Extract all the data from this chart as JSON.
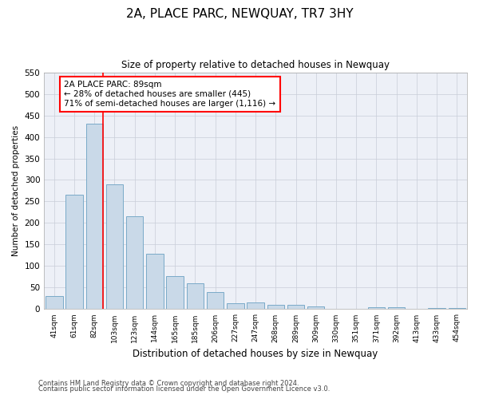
{
  "title": "2A, PLACE PARC, NEWQUAY, TR7 3HY",
  "subtitle": "Size of property relative to detached houses in Newquay",
  "xlabel": "Distribution of detached houses by size in Newquay",
  "ylabel": "Number of detached properties",
  "categories": [
    "41sqm",
    "61sqm",
    "82sqm",
    "103sqm",
    "123sqm",
    "144sqm",
    "165sqm",
    "185sqm",
    "206sqm",
    "227sqm",
    "247sqm",
    "268sqm",
    "289sqm",
    "309sqm",
    "330sqm",
    "351sqm",
    "371sqm",
    "392sqm",
    "413sqm",
    "433sqm",
    "454sqm"
  ],
  "values": [
    30,
    265,
    430,
    290,
    215,
    128,
    76,
    60,
    40,
    13,
    16,
    10,
    10,
    7,
    1,
    1,
    5,
    5,
    1,
    3,
    2
  ],
  "bar_color": "#c9d9e8",
  "bar_edge_color": "#7aaac8",
  "vline_color": "red",
  "annotation_text": "2A PLACE PARC: 89sqm\n← 28% of detached houses are smaller (445)\n71% of semi-detached houses are larger (1,116) →",
  "annotation_box_color": "white",
  "annotation_box_edge": "red",
  "ylim": [
    0,
    550
  ],
  "yticks": [
    0,
    50,
    100,
    150,
    200,
    250,
    300,
    350,
    400,
    450,
    500,
    550
  ],
  "footer1": "Contains HM Land Registry data © Crown copyright and database right 2024.",
  "footer2": "Contains public sector information licensed under the Open Government Licence v3.0.",
  "bg_color": "#edf0f7",
  "grid_color": "#c8cdd8"
}
